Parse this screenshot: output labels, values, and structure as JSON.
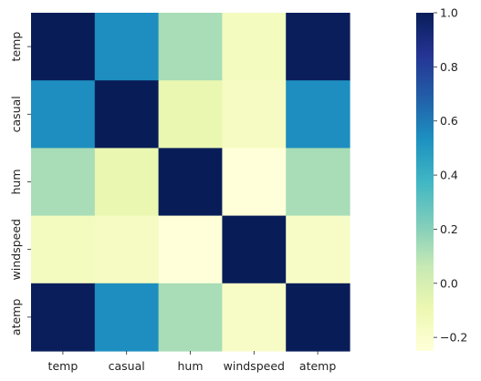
{
  "chart_data": {
    "type": "heatmap",
    "title": "",
    "xlabel": "",
    "ylabel": "",
    "x_categories": [
      "temp",
      "casual",
      "hum",
      "windspeed",
      "atemp"
    ],
    "y_categories": [
      "temp",
      "casual",
      "hum",
      "windspeed",
      "atemp"
    ],
    "values": [
      [
        1.0,
        0.54,
        0.13,
        -0.15,
        0.99
      ],
      [
        0.54,
        1.0,
        -0.08,
        -0.16,
        0.54
      ],
      [
        0.13,
        -0.08,
        1.0,
        -0.25,
        0.13
      ],
      [
        -0.15,
        -0.16,
        -0.25,
        1.0,
        -0.18
      ],
      [
        0.99,
        0.54,
        0.13,
        -0.18,
        1.0
      ]
    ],
    "colorbar": {
      "min": -0.25,
      "max": 1.0,
      "ticks": [
        -0.2,
        0.0,
        0.2,
        0.4,
        0.6,
        0.8,
        1.0
      ],
      "tick_labels": [
        "−0.2",
        "0.0",
        "0.2",
        "0.4",
        "0.6",
        "0.8",
        "1.0"
      ],
      "colormap": "YlGnBu",
      "stops": [
        "#ffffd9",
        "#edf8b1",
        "#c7e9b4",
        "#7fcdbb",
        "#41b6c4",
        "#1d91c0",
        "#225ea8",
        "#253494",
        "#081d58"
      ]
    },
    "grid": false,
    "legend": "colorbar-right"
  }
}
